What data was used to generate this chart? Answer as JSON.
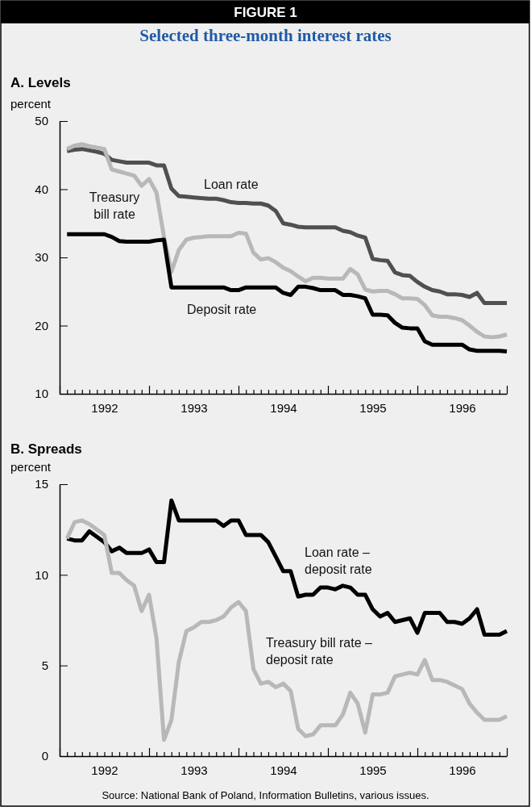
{
  "chart_data": [
    {
      "type": "other",
      "title": "FIGURE 1",
      "subtitle": "Selected three-month interest rates"
    },
    {
      "type": "line",
      "title": "A. Levels",
      "ylabel": "percent",
      "ylim": [
        10,
        50
      ],
      "yticks": [
        10,
        20,
        30,
        40,
        50
      ],
      "xlim": [
        1992,
        1997
      ],
      "xticks": [
        {
          "value": 1992,
          "label": null
        },
        {
          "value": 1992.083,
          "label": null
        },
        {
          "value": 1992.167,
          "label": null
        },
        {
          "value": 1992.25,
          "label": null
        },
        {
          "value": 1992.333,
          "label": null
        },
        {
          "value": 1992.417,
          "label": null
        },
        {
          "value": 1992.5,
          "label": "1992"
        },
        {
          "value": 1992.583,
          "label": null
        },
        {
          "value": 1992.667,
          "label": null
        },
        {
          "value": 1992.75,
          "label": null
        },
        {
          "value": 1992.833,
          "label": null
        },
        {
          "value": 1992.917,
          "label": null
        },
        {
          "value": 1993,
          "label": null
        },
        {
          "value": 1993.083,
          "label": null
        },
        {
          "value": 1993.167,
          "label": null
        },
        {
          "value": 1993.25,
          "label": null
        },
        {
          "value": 1993.333,
          "label": null
        },
        {
          "value": 1993.417,
          "label": null
        },
        {
          "value": 1993.5,
          "label": "1993"
        },
        {
          "value": 1993.583,
          "label": null
        },
        {
          "value": 1993.667,
          "label": null
        },
        {
          "value": 1993.75,
          "label": null
        },
        {
          "value": 1993.833,
          "label": null
        },
        {
          "value": 1993.917,
          "label": null
        },
        {
          "value": 1994,
          "label": null
        },
        {
          "value": 1994.083,
          "label": null
        },
        {
          "value": 1994.167,
          "label": null
        },
        {
          "value": 1994.25,
          "label": null
        },
        {
          "value": 1994.333,
          "label": null
        },
        {
          "value": 1994.417,
          "label": null
        },
        {
          "value": 1994.5,
          "label": "1994"
        },
        {
          "value": 1994.583,
          "label": null
        },
        {
          "value": 1994.667,
          "label": null
        },
        {
          "value": 1994.75,
          "label": null
        },
        {
          "value": 1994.833,
          "label": null
        },
        {
          "value": 1994.917,
          "label": null
        },
        {
          "value": 1995,
          "label": null
        },
        {
          "value": 1995.083,
          "label": null
        },
        {
          "value": 1995.167,
          "label": null
        },
        {
          "value": 1995.25,
          "label": null
        },
        {
          "value": 1995.333,
          "label": null
        },
        {
          "value": 1995.417,
          "label": null
        },
        {
          "value": 1995.5,
          "label": "1995"
        },
        {
          "value": 1995.583,
          "label": null
        },
        {
          "value": 1995.667,
          "label": null
        },
        {
          "value": 1995.75,
          "label": null
        },
        {
          "value": 1995.833,
          "label": null
        },
        {
          "value": 1995.917,
          "label": null
        },
        {
          "value": 1996,
          "label": null
        },
        {
          "value": 1996.083,
          "label": null
        },
        {
          "value": 1996.167,
          "label": null
        },
        {
          "value": 1996.25,
          "label": null
        },
        {
          "value": 1996.333,
          "label": null
        },
        {
          "value": 1996.417,
          "label": null
        },
        {
          "value": 1996.5,
          "label": "1996"
        },
        {
          "value": 1996.583,
          "label": null
        },
        {
          "value": 1996.667,
          "label": null
        },
        {
          "value": 1996.75,
          "label": null
        },
        {
          "value": 1996.833,
          "label": null
        },
        {
          "value": 1996.917,
          "label": null
        },
        {
          "value": 1997,
          "label": null
        }
      ],
      "x": [
        1992.083,
        1992.167,
        1992.25,
        1992.333,
        1992.417,
        1992.5,
        1992.583,
        1992.667,
        1992.75,
        1992.833,
        1992.917,
        1993,
        1993.083,
        1993.167,
        1993.25,
        1993.333,
        1993.417,
        1993.5,
        1993.583,
        1993.667,
        1993.75,
        1993.833,
        1993.917,
        1994,
        1994.083,
        1994.167,
        1994.25,
        1994.333,
        1994.417,
        1994.5,
        1994.583,
        1994.667,
        1994.75,
        1994.833,
        1994.917,
        1995,
        1995.083,
        1995.167,
        1995.25,
        1995.333,
        1995.417,
        1995.5,
        1995.583,
        1995.667,
        1995.75,
        1995.833,
        1995.917,
        1996,
        1996.083,
        1996.167,
        1996.25,
        1996.333,
        1996.417,
        1996.5,
        1996.583,
        1996.667,
        1996.75,
        1996.833,
        1996.917,
        1997
      ],
      "series": [
        {
          "name": "Loan rate",
          "color": "#505050",
          "values": [
            45.6,
            45.8,
            45.9,
            45.7,
            45.5,
            45.2,
            44.3,
            44.1,
            43.9,
            43.9,
            43.9,
            43.9,
            43.5,
            43.5,
            40.1,
            39.0,
            38.9,
            38.8,
            38.7,
            38.6,
            38.6,
            38.4,
            38.1,
            38.0,
            38.0,
            37.9,
            37.9,
            37.6,
            36.8,
            35.0,
            34.8,
            34.5,
            34.4,
            34.4,
            34.4,
            34.4,
            34.4,
            33.9,
            33.7,
            33.2,
            32.9,
            29.8,
            29.6,
            29.5,
            27.8,
            27.4,
            27.3,
            26.4,
            25.7,
            25.2,
            25.0,
            24.6,
            24.6,
            24.5,
            24.2,
            24.8,
            23.3,
            23.3,
            23.3,
            23.3
          ]
        },
        {
          "name": "Treasury bill rate",
          "color": "#b8b8b8",
          "values": [
            45.9,
            46.4,
            46.6,
            46.3,
            46.1,
            45.9,
            42.9,
            42.6,
            42.3,
            42.0,
            40.5,
            41.5,
            39.5,
            33.0,
            27.9,
            31.1,
            32.6,
            32.9,
            33.0,
            33.1,
            33.1,
            33.1,
            33.1,
            33.6,
            33.5,
            30.7,
            29.7,
            29.9,
            29.3,
            28.5,
            28.0,
            27.2,
            26.5,
            27.0,
            27.0,
            26.9,
            26.9,
            26.9,
            28.3,
            27.5,
            25.3,
            25.0,
            25.1,
            25.1,
            24.6,
            24.0,
            24.0,
            23.9,
            23.0,
            21.5,
            21.3,
            21.3,
            21.1,
            20.8,
            20.0,
            19.1,
            18.4,
            18.3,
            18.4,
            18.7
          ]
        },
        {
          "name": "Deposit rate",
          "color": "#000000",
          "values": [
            33.4,
            33.4,
            33.4,
            33.4,
            33.4,
            33.4,
            33.0,
            32.4,
            32.3,
            32.3,
            32.3,
            32.3,
            32.5,
            32.6,
            25.6,
            25.6,
            25.6,
            25.6,
            25.6,
            25.6,
            25.6,
            25.6,
            25.2,
            25.2,
            25.6,
            25.6,
            25.6,
            25.6,
            25.6,
            24.8,
            24.5,
            25.7,
            25.7,
            25.5,
            25.2,
            25.2,
            25.2,
            24.5,
            24.5,
            24.3,
            24.0,
            21.6,
            21.6,
            21.5,
            20.4,
            19.7,
            19.6,
            19.6,
            17.7,
            17.2,
            17.2,
            17.2,
            17.2,
            17.2,
            16.5,
            16.3,
            16.3,
            16.3,
            16.3,
            16.2
          ]
        }
      ]
    },
    {
      "type": "line",
      "title": "B. Spreads",
      "ylabel": "percent",
      "ylim": [
        0,
        15
      ],
      "yticks": [
        0,
        5,
        10,
        15
      ],
      "xlim": [
        1992,
        1997
      ],
      "xticks": [
        {
          "value": 1992,
          "label": null
        },
        {
          "value": 1992.083,
          "label": null
        },
        {
          "value": 1992.167,
          "label": null
        },
        {
          "value": 1992.25,
          "label": null
        },
        {
          "value": 1992.333,
          "label": null
        },
        {
          "value": 1992.417,
          "label": null
        },
        {
          "value": 1992.5,
          "label": "1992"
        },
        {
          "value": 1992.583,
          "label": null
        },
        {
          "value": 1992.667,
          "label": null
        },
        {
          "value": 1992.75,
          "label": null
        },
        {
          "value": 1992.833,
          "label": null
        },
        {
          "value": 1992.917,
          "label": null
        },
        {
          "value": 1993,
          "label": null
        },
        {
          "value": 1993.083,
          "label": null
        },
        {
          "value": 1993.167,
          "label": null
        },
        {
          "value": 1993.25,
          "label": null
        },
        {
          "value": 1993.333,
          "label": null
        },
        {
          "value": 1993.417,
          "label": null
        },
        {
          "value": 1993.5,
          "label": "1993"
        },
        {
          "value": 1993.583,
          "label": null
        },
        {
          "value": 1993.667,
          "label": null
        },
        {
          "value": 1993.75,
          "label": null
        },
        {
          "value": 1993.833,
          "label": null
        },
        {
          "value": 1993.917,
          "label": null
        },
        {
          "value": 1994,
          "label": null
        },
        {
          "value": 1994.083,
          "label": null
        },
        {
          "value": 1994.167,
          "label": null
        },
        {
          "value": 1994.25,
          "label": null
        },
        {
          "value": 1994.333,
          "label": null
        },
        {
          "value": 1994.417,
          "label": null
        },
        {
          "value": 1994.5,
          "label": "1994"
        },
        {
          "value": 1994.583,
          "label": null
        },
        {
          "value": 1994.667,
          "label": null
        },
        {
          "value": 1994.75,
          "label": null
        },
        {
          "value": 1994.833,
          "label": null
        },
        {
          "value": 1994.917,
          "label": null
        },
        {
          "value": 1995,
          "label": null
        },
        {
          "value": 1995.083,
          "label": null
        },
        {
          "value": 1995.167,
          "label": null
        },
        {
          "value": 1995.25,
          "label": null
        },
        {
          "value": 1995.333,
          "label": null
        },
        {
          "value": 1995.417,
          "label": null
        },
        {
          "value": 1995.5,
          "label": "1995"
        },
        {
          "value": 1995.583,
          "label": null
        },
        {
          "value": 1995.667,
          "label": null
        },
        {
          "value": 1995.75,
          "label": null
        },
        {
          "value": 1995.833,
          "label": null
        },
        {
          "value": 1995.917,
          "label": null
        },
        {
          "value": 1996,
          "label": null
        },
        {
          "value": 1996.083,
          "label": null
        },
        {
          "value": 1996.167,
          "label": null
        },
        {
          "value": 1996.25,
          "label": null
        },
        {
          "value": 1996.333,
          "label": null
        },
        {
          "value": 1996.417,
          "label": null
        },
        {
          "value": 1996.5,
          "label": "1996"
        },
        {
          "value": 1996.583,
          "label": null
        },
        {
          "value": 1996.667,
          "label": null
        },
        {
          "value": 1996.75,
          "label": null
        },
        {
          "value": 1996.833,
          "label": null
        },
        {
          "value": 1996.917,
          "label": null
        },
        {
          "value": 1997,
          "label": null
        }
      ],
      "x": [
        1992.083,
        1992.167,
        1992.25,
        1992.333,
        1992.417,
        1992.5,
        1992.583,
        1992.667,
        1992.75,
        1992.833,
        1992.917,
        1993,
        1993.083,
        1993.167,
        1993.25,
        1993.333,
        1993.417,
        1993.5,
        1993.583,
        1993.667,
        1993.75,
        1993.833,
        1993.917,
        1994,
        1994.083,
        1994.167,
        1994.25,
        1994.333,
        1994.417,
        1994.5,
        1994.583,
        1994.667,
        1994.75,
        1994.833,
        1994.917,
        1995,
        1995.083,
        1995.167,
        1995.25,
        1995.333,
        1995.417,
        1995.5,
        1995.583,
        1995.667,
        1995.75,
        1995.833,
        1995.917,
        1996,
        1996.083,
        1996.167,
        1996.25,
        1996.333,
        1996.417,
        1996.5,
        1996.583,
        1996.667,
        1996.75,
        1996.833,
        1996.917,
        1997
      ],
      "series": [
        {
          "name": "Loan rate – deposit rate",
          "color": "#000000",
          "values": [
            12.0,
            11.9,
            11.9,
            12.4,
            12.1,
            11.8,
            11.3,
            11.5,
            11.2,
            11.2,
            11.2,
            11.4,
            10.7,
            10.7,
            14.1,
            13.0,
            13.0,
            13.0,
            13.0,
            13.0,
            13.0,
            12.7,
            13.0,
            13.0,
            12.2,
            12.2,
            12.2,
            11.8,
            11.0,
            10.2,
            10.2,
            8.8,
            8.9,
            8.9,
            9.3,
            9.3,
            9.2,
            9.4,
            9.3,
            8.9,
            8.9,
            8.1,
            7.7,
            7.9,
            7.4,
            7.5,
            7.6,
            6.8,
            7.9,
            7.9,
            7.9,
            7.4,
            7.4,
            7.3,
            7.6,
            8.1,
            6.7,
            6.7,
            6.7,
            6.9
          ]
        },
        {
          "name": "Treasury bill rate – deposit rate",
          "color": "#b8b8b8",
          "values": [
            12.0,
            12.9,
            13.0,
            12.8,
            12.5,
            12.2,
            10.1,
            10.1,
            9.7,
            9.4,
            8.0,
            8.9,
            6.5,
            0.9,
            2.0,
            5.2,
            6.9,
            7.1,
            7.4,
            7.4,
            7.5,
            7.7,
            8.2,
            8.5,
            8.0,
            4.8,
            4.0,
            4.1,
            3.8,
            4.0,
            3.6,
            1.5,
            1.1,
            1.2,
            1.7,
            1.7,
            1.7,
            2.3,
            3.5,
            2.9,
            1.3,
            3.4,
            3.4,
            3.5,
            4.4,
            4.5,
            4.6,
            4.5,
            5.3,
            4.2,
            4.2,
            4.1,
            3.9,
            3.7,
            2.9,
            2.4,
            2.0,
            2.0,
            2.0,
            2.2
          ]
        }
      ],
      "annotations": [
        "Source: National Bank of Poland, Information Bulletins, various issues."
      ]
    }
  ]
}
